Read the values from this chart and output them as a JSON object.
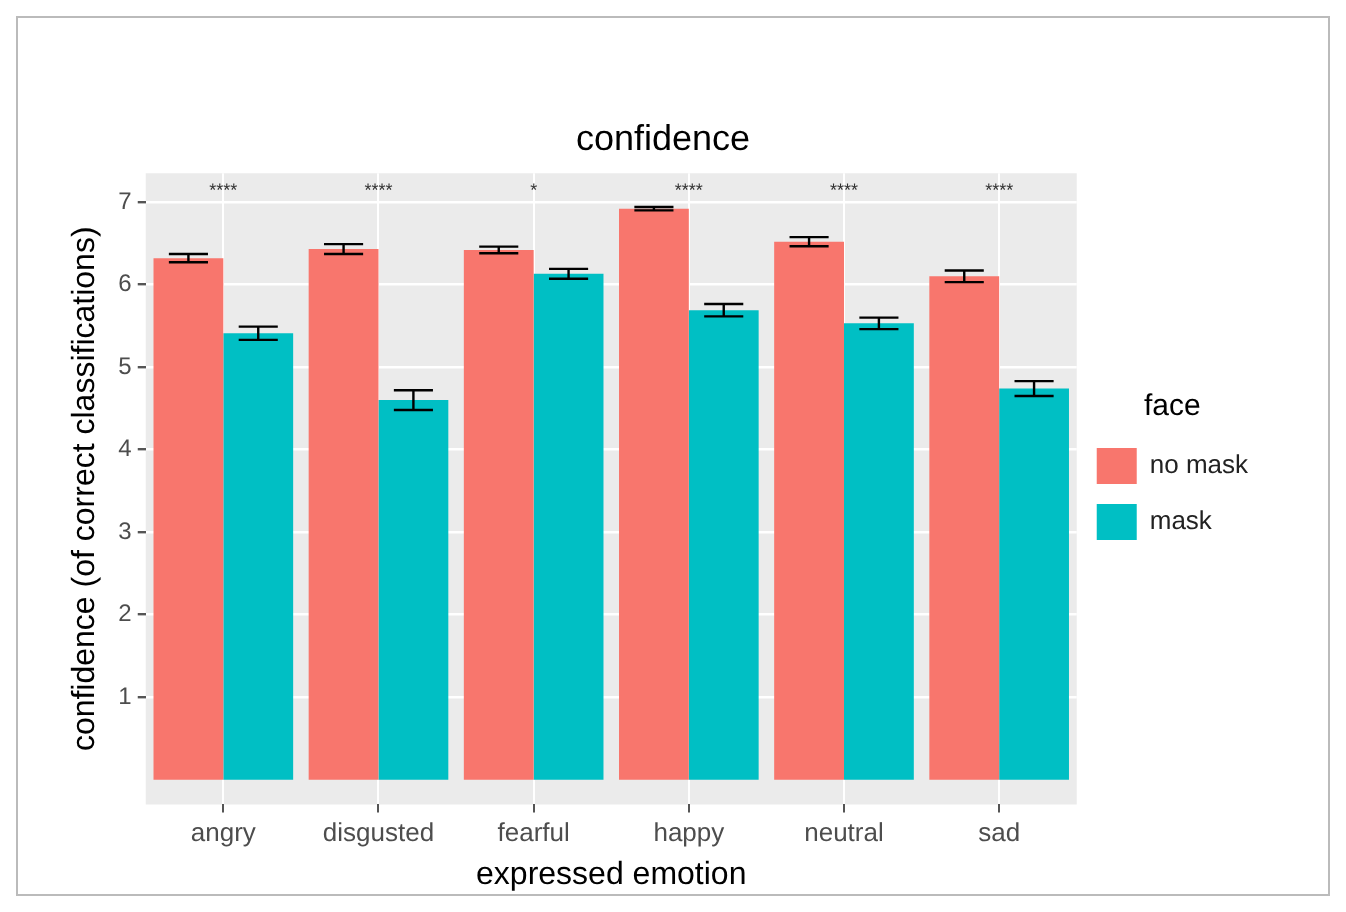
{
  "chart_data": {
    "type": "bar",
    "title": "confidence",
    "xlabel": "expressed emotion",
    "ylabel": "confidence (of correct classifications)",
    "legend_title": "face",
    "legend": "right",
    "grid": true,
    "categories": [
      "angry",
      "disgusted",
      "fearful",
      "happy",
      "neutral",
      "sad"
    ],
    "ylim": [
      -0.3,
      7.35
    ],
    "yticks": [
      1,
      2,
      3,
      4,
      5,
      6,
      7
    ],
    "series": [
      {
        "name": "no mask",
        "color": "#f8766d",
        "values": [
          6.32,
          6.43,
          6.42,
          6.92,
          6.52,
          6.1
        ],
        "errors": [
          0.05,
          0.06,
          0.04,
          0.02,
          0.055,
          0.07
        ]
      },
      {
        "name": "mask",
        "color": "#00bfc4",
        "values": [
          5.41,
          4.6,
          6.13,
          5.69,
          5.53,
          4.74
        ],
        "errors": [
          0.08,
          0.12,
          0.06,
          0.075,
          0.07,
          0.09
        ]
      }
    ],
    "annotations": [
      "****",
      "****",
      "*",
      "****",
      "****",
      "****"
    ]
  }
}
